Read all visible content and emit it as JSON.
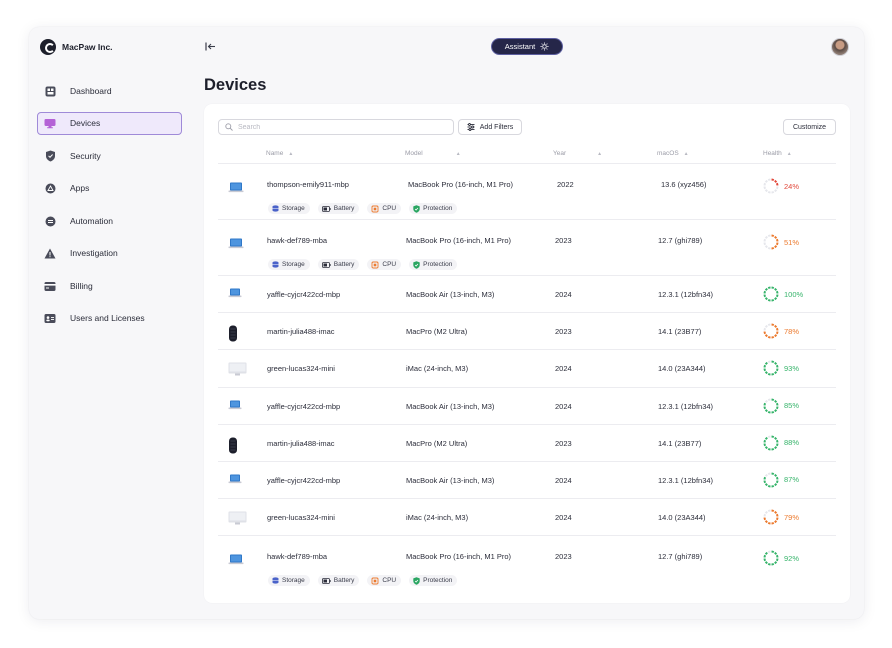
{
  "brand": {
    "name": "MacPaw Inc."
  },
  "assistant_label": "Assistant",
  "colors": {
    "accent": "#252649",
    "active_bg": "#efe9fb",
    "active_border": "#9f8ad8",
    "good": "#37b46b",
    "warn": "#ec7a2e",
    "bad": "#e2483b"
  },
  "sidebar": {
    "items": [
      {
        "label": "Dashboard",
        "icon": "dashboard-icon",
        "active": false
      },
      {
        "label": "Devices",
        "icon": "monitor-icon",
        "active": true
      },
      {
        "label": "Security",
        "icon": "shield-icon",
        "active": false
      },
      {
        "label": "Apps",
        "icon": "apps-icon",
        "active": false
      },
      {
        "label": "Automation",
        "icon": "automation-icon",
        "active": false
      },
      {
        "label": "Investigation",
        "icon": "warning-icon",
        "active": false
      },
      {
        "label": "Billing",
        "icon": "billing-icon",
        "active": false
      },
      {
        "label": "Users and Licenses",
        "icon": "users-icon",
        "active": false
      }
    ]
  },
  "main": {
    "title": "Devices",
    "search_placeholder": "Search",
    "add_filters_label": "Add Filters",
    "customize_label": "Customize",
    "columns": [
      "Name",
      "Model",
      "Year",
      "macOS",
      "Health"
    ]
  },
  "tags": {
    "storage": "Storage",
    "battery": "Battery",
    "cpu": "CPU",
    "protection": "Protection"
  },
  "devices": [
    {
      "name": "thompson-emily911-mbp",
      "model": "MacBook Pro (16-inch, M1 Pro)",
      "year": "2022",
      "macos": "13.6 (xyz456)",
      "health": "24%",
      "health_value": 24,
      "type": "laptop",
      "show_tags": true
    },
    {
      "name": "hawk-def789-mba",
      "model": "MacBook Pro (16-inch, M1 Pro)",
      "year": "2023",
      "macos": "12.7 (ghi789)",
      "health": "51%",
      "health_value": 51,
      "type": "laptop",
      "show_tags": true
    },
    {
      "name": "yaffle-cyjcr422cd-mbp",
      "model": "MacBook Air (13-inch, M3)",
      "year": "2024",
      "macos": "12.3.1 (12bfn34)",
      "health": "100%",
      "health_value": 100,
      "type": "laptop-small",
      "show_tags": false
    },
    {
      "name": "martin-julia488-imac",
      "model": "MacPro (M2 Ultra)",
      "year": "2023",
      "macos": "14.1 (23B77)",
      "health": "78%",
      "health_value": 78,
      "type": "macpro",
      "show_tags": false
    },
    {
      "name": "green-lucas324-mini",
      "model": "iMac (24-inch, M3)",
      "year": "2024",
      "macos": "14.0 (23A344)",
      "health": "93%",
      "health_value": 93,
      "type": "imac",
      "show_tags": false
    },
    {
      "name": "yaffle-cyjcr422cd-mbp",
      "model": "MacBook Air (13-inch, M3)",
      "year": "2024",
      "macos": "12.3.1 (12bfn34)",
      "health": "85%",
      "health_value": 85,
      "type": "laptop-small",
      "show_tags": false
    },
    {
      "name": "martin-julia488-imac",
      "model": "MacPro (M2 Ultra)",
      "year": "2023",
      "macos": "14.1 (23B77)",
      "health": "88%",
      "health_value": 88,
      "type": "macpro",
      "show_tags": false
    },
    {
      "name": "yaffle-cyjcr422cd-mbp",
      "model": "MacBook Air (13-inch, M3)",
      "year": "2024",
      "macos": "12.3.1 (12bfn34)",
      "health": "87%",
      "health_value": 87,
      "type": "laptop-small",
      "show_tags": false
    },
    {
      "name": "green-lucas324-mini",
      "model": "iMac (24-inch, M3)",
      "year": "2024",
      "macos": "14.0 (23A344)",
      "health": "79%",
      "health_value": 79,
      "type": "imac",
      "show_tags": false
    },
    {
      "name": "hawk-def789-mba",
      "model": "MacBook Pro (16-inch, M1 Pro)",
      "year": "2023",
      "macos": "12.7 (ghi789)",
      "health": "92%",
      "health_value": 92,
      "type": "laptop",
      "show_tags": true
    }
  ]
}
